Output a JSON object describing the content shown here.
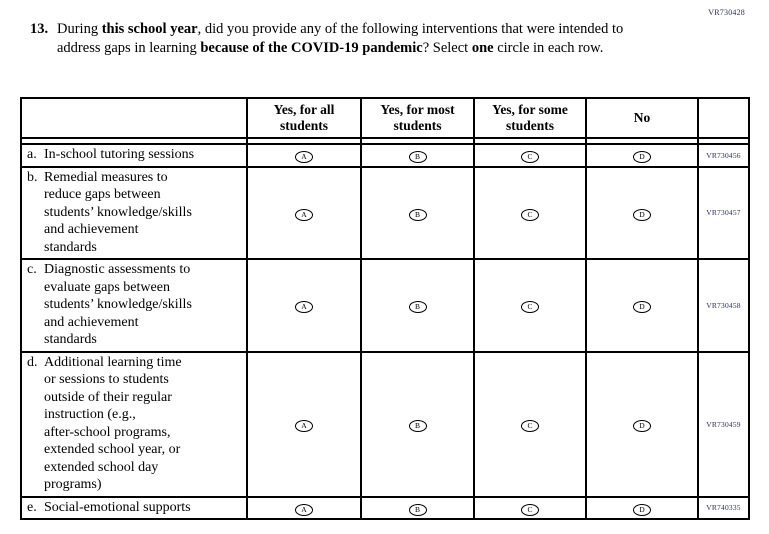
{
  "page_code": "VR730428",
  "question": {
    "number": "13.",
    "segments": [
      {
        "text": "During ",
        "bold": false
      },
      {
        "text": "this school year",
        "bold": true
      },
      {
        "text": ", did you provide any of the following interventions that were intended to address gaps in learning ",
        "bold": false
      },
      {
        "text": "because of the COVID-19 pandemic",
        "bold": true
      },
      {
        "text": "? Select ",
        "bold": false
      },
      {
        "text": "one",
        "bold": true
      },
      {
        "text": " circle in each row.",
        "bold": false
      }
    ]
  },
  "table": {
    "column_headers": [
      "",
      "Yes, for all\nstudents",
      "Yes, for most\nstudents",
      "Yes, for some\nstudents",
      "No",
      ""
    ],
    "options": [
      "A",
      "B",
      "C",
      "D"
    ],
    "rows": [
      {
        "letter": "a.",
        "label": "In-school tutoring sessions",
        "code": "VR730456"
      },
      {
        "letter": "b.",
        "label": "Remedial measures to\nreduce gaps between\nstudents’ knowledge/skills\nand achievement\nstandards",
        "code": "VR730457"
      },
      {
        "letter": "c.",
        "label": "Diagnostic assessments to\nevaluate gaps between\nstudents’ knowledge/skills\nand achievement\nstandards",
        "code": "VR730458"
      },
      {
        "letter": "d.",
        "label": "Additional learning time\nor sessions to students\noutside of their regular\ninstruction (e.g.,\nafter-school programs,\nextended school year, or\nextended school day\nprograms)",
        "code": "VR730459"
      },
      {
        "letter": "e.",
        "label": "Social-emotional supports",
        "code": "VR740335"
      }
    ]
  }
}
